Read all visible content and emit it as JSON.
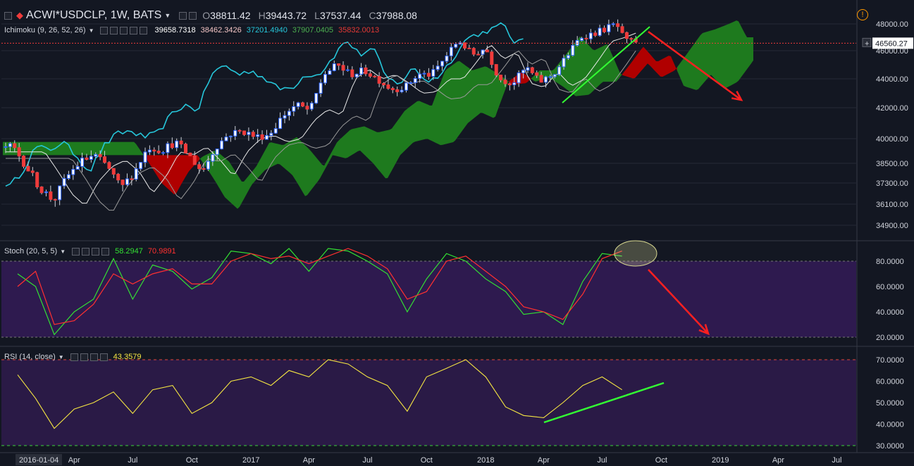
{
  "header": {
    "symbol": "ACWI*USDCLP, 1W, BATS",
    "open_label": "O",
    "open": "38811.42",
    "high_label": "H",
    "high": "39443.72",
    "low_label": "L",
    "low": "37537.44",
    "close_label": "C",
    "close": "37988.08",
    "alert_glyph": "!"
  },
  "ichimoku": {
    "label": "Ichimoku (9, 26, 52, 26)",
    "values": [
      "39658.7318",
      "38462.3426",
      "37201.4940",
      "37907.0405",
      "35832.0013"
    ],
    "value_colors": [
      "#ffffff",
      "#f2c4c4",
      "#26c6da",
      "#4caf50",
      "#e53935"
    ]
  },
  "stoch": {
    "label": "Stoch (20, 5, 5)",
    "k": "58.2947",
    "d": "70.9891",
    "k_color": "#33e033",
    "d_color": "#ff3030"
  },
  "rsi": {
    "label": "RSI (14, close)",
    "value": "43.3579",
    "color": "#f5e642"
  },
  "price_axis": {
    "ticks": [
      "48000.00",
      "46000.00",
      "44000.00",
      "42000.00",
      "40000.00",
      "38500.00",
      "37300.00",
      "36100.00",
      "34900.00"
    ],
    "current": "46560.27"
  },
  "stoch_axis": {
    "ticks": [
      "80.0000",
      "60.0000",
      "40.0000",
      "20.0000"
    ]
  },
  "rsi_axis": {
    "ticks": [
      "70.0000",
      "60.0000",
      "50.0000",
      "40.0000",
      "30.0000"
    ]
  },
  "x_axis": {
    "ticks": [
      "2016-01-04",
      "Apr",
      "Jul",
      "Oct",
      "2017",
      "Apr",
      "Jul",
      "Oct",
      "2018",
      "Apr",
      "Jul",
      "Oct",
      "2019",
      "Apr",
      "Jul"
    ]
  },
  "colors": {
    "bg": "#131722",
    "up": "#2962ff",
    "down": "#ef3b3b",
    "tenkan": "#26c6da",
    "kijun": "#ffffff",
    "chikou": "#bbbbbb",
    "cloud_up": "#1e7a1e",
    "cloud_down": "#b00000",
    "stoch_band": "#2e1a4f",
    "rsi_band": "#2a1a46",
    "trend_green": "#33ff33",
    "arrow_red": "#ff2020"
  },
  "chart_data": [
    {
      "type": "candlestick",
      "title": "ACWI*USDCLP, 1W, BATS",
      "ylim": [
        34300,
        48700
      ],
      "x_range": [
        "2016-01-04",
        "2019-07-29"
      ],
      "series": [
        {
          "name": "Ichimoku (9, 26, 52, 26)",
          "price_path": [
            [
              "2016-01-04",
              39500
            ],
            [
              "2016-01-25",
              38300
            ],
            [
              "2016-02-15",
              37000
            ],
            [
              "2016-03-07",
              36300
            ],
            [
              "2016-03-28",
              37700
            ],
            [
              "2016-04-18",
              38600
            ],
            [
              "2016-05-09",
              39000
            ],
            [
              "2016-05-30",
              38300
            ],
            [
              "2016-06-20",
              37000
            ],
            [
              "2016-07-11",
              38000
            ],
            [
              "2016-08-01",
              39500
            ],
            [
              "2016-08-22",
              39300
            ],
            [
              "2016-09-12",
              39800
            ],
            [
              "2016-10-03",
              39000
            ],
            [
              "2016-10-24",
              38000
            ],
            [
              "2016-11-14",
              39500
            ],
            [
              "2016-12-05",
              40300
            ],
            [
              "2016-12-26",
              40500
            ],
            [
              "2017-01-16",
              40100
            ],
            [
              "2017-02-06",
              40300
            ],
            [
              "2017-02-27",
              41500
            ],
            [
              "2017-03-20",
              42200
            ],
            [
              "2017-04-10",
              41800
            ],
            [
              "2017-05-01",
              44300
            ],
            [
              "2017-05-22",
              45000
            ],
            [
              "2017-06-12",
              44300
            ],
            [
              "2017-07-03",
              44600
            ],
            [
              "2017-07-24",
              44000
            ],
            [
              "2017-08-14",
              43300
            ],
            [
              "2017-09-04",
              43400
            ],
            [
              "2017-09-25",
              44300
            ],
            [
              "2017-10-16",
              44300
            ],
            [
              "2017-11-06",
              45500
            ],
            [
              "2017-11-27",
              46800
            ],
            [
              "2017-12-18",
              45700
            ],
            [
              "2018-01-08",
              46200
            ],
            [
              "2018-01-29",
              44000
            ],
            [
              "2018-02-19",
              43700
            ],
            [
              "2018-03-12",
              44800
            ],
            [
              "2018-04-02",
              43800
            ],
            [
              "2018-04-23",
              44300
            ],
            [
              "2018-05-14",
              45600
            ],
            [
              "2018-06-04",
              47000
            ],
            [
              "2018-06-25",
              47300
            ],
            [
              "2018-07-16",
              47700
            ],
            [
              "2018-07-30",
              48000
            ],
            [
              "2018-08-13",
              46700
            ]
          ]
        }
      ]
    },
    {
      "type": "line",
      "title": "Stoch (20, 5, 5)",
      "ylim": [
        17,
        93
      ],
      "series": [
        {
          "name": "K",
          "color": "#33e033",
          "points": [
            [
              "2016-01-04",
              70
            ],
            [
              "2016-02-01",
              60
            ],
            [
              "2016-03-01",
              22
            ],
            [
              "2016-04-01",
              40
            ],
            [
              "2016-05-01",
              50
            ],
            [
              "2016-06-01",
              82
            ],
            [
              "2016-07-01",
              50
            ],
            [
              "2016-08-01",
              77
            ],
            [
              "2016-09-01",
              72
            ],
            [
              "2016-10-01",
              58
            ],
            [
              "2016-11-01",
              67
            ],
            [
              "2016-12-01",
              88
            ],
            [
              "2017-01-01",
              86
            ],
            [
              "2017-02-01",
              78
            ],
            [
              "2017-03-01",
              90
            ],
            [
              "2017-04-01",
              72
            ],
            [
              "2017-05-01",
              90
            ],
            [
              "2017-06-01",
              88
            ],
            [
              "2017-07-01",
              80
            ],
            [
              "2017-08-01",
              70
            ],
            [
              "2017-09-01",
              40
            ],
            [
              "2017-10-01",
              66
            ],
            [
              "2017-11-01",
              86
            ],
            [
              "2017-12-01",
              80
            ],
            [
              "2018-01-01",
              66
            ],
            [
              "2018-02-01",
              56
            ],
            [
              "2018-03-01",
              38
            ],
            [
              "2018-04-01",
              40
            ],
            [
              "2018-05-01",
              30
            ],
            [
              "2018-06-01",
              64
            ],
            [
              "2018-07-01",
              86
            ],
            [
              "2018-08-01",
              84
            ]
          ]
        },
        {
          "name": "D",
          "color": "#ff3030",
          "points": [
            [
              "2016-01-04",
              60
            ],
            [
              "2016-02-01",
              72
            ],
            [
              "2016-03-01",
              30
            ],
            [
              "2016-04-01",
              33
            ],
            [
              "2016-05-01",
              46
            ],
            [
              "2016-06-01",
              70
            ],
            [
              "2016-07-01",
              62
            ],
            [
              "2016-08-01",
              70
            ],
            [
              "2016-09-01",
              74
            ],
            [
              "2016-10-01",
              62
            ],
            [
              "2016-11-01",
              62
            ],
            [
              "2016-12-01",
              80
            ],
            [
              "2017-01-01",
              86
            ],
            [
              "2017-02-01",
              82
            ],
            [
              "2017-03-01",
              84
            ],
            [
              "2017-04-01",
              78
            ],
            [
              "2017-05-01",
              84
            ],
            [
              "2017-06-01",
              90
            ],
            [
              "2017-07-01",
              84
            ],
            [
              "2017-08-01",
              74
            ],
            [
              "2017-09-01",
              50
            ],
            [
              "2017-10-01",
              56
            ],
            [
              "2017-11-01",
              80
            ],
            [
              "2017-12-01",
              84
            ],
            [
              "2018-01-01",
              72
            ],
            [
              "2018-02-01",
              60
            ],
            [
              "2018-03-01",
              44
            ],
            [
              "2018-04-01",
              40
            ],
            [
              "2018-05-01",
              34
            ],
            [
              "2018-06-01",
              54
            ],
            [
              "2018-07-01",
              82
            ],
            [
              "2018-08-01",
              88
            ]
          ]
        }
      ]
    },
    {
      "type": "line",
      "title": "RSI (14, close)",
      "ylim": [
        28,
        73
      ],
      "series": [
        {
          "name": "RSI",
          "color": "#f5e642",
          "points": [
            [
              "2016-01-04",
              63
            ],
            [
              "2016-02-01",
              52
            ],
            [
              "2016-03-01",
              38
            ],
            [
              "2016-04-01",
              47
            ],
            [
              "2016-05-01",
              50
            ],
            [
              "2016-06-01",
              55
            ],
            [
              "2016-07-01",
              45
            ],
            [
              "2016-08-01",
              56
            ],
            [
              "2016-09-01",
              58
            ],
            [
              "2016-10-01",
              45
            ],
            [
              "2016-11-01",
              50
            ],
            [
              "2016-12-01",
              60
            ],
            [
              "2017-01-01",
              62
            ],
            [
              "2017-02-01",
              58
            ],
            [
              "2017-03-01",
              65
            ],
            [
              "2017-04-01",
              62
            ],
            [
              "2017-05-01",
              70
            ],
            [
              "2017-06-01",
              68
            ],
            [
              "2017-07-01",
              62
            ],
            [
              "2017-08-01",
              58
            ],
            [
              "2017-09-01",
              46
            ],
            [
              "2017-10-01",
              62
            ],
            [
              "2017-11-01",
              66
            ],
            [
              "2017-12-01",
              70
            ],
            [
              "2018-01-01",
              62
            ],
            [
              "2018-02-01",
              48
            ],
            [
              "2018-03-01",
              44
            ],
            [
              "2018-04-01",
              43
            ],
            [
              "2018-05-01",
              50
            ],
            [
              "2018-06-01",
              58
            ],
            [
              "2018-07-01",
              62
            ],
            [
              "2018-08-01",
              56
            ]
          ]
        }
      ]
    }
  ]
}
